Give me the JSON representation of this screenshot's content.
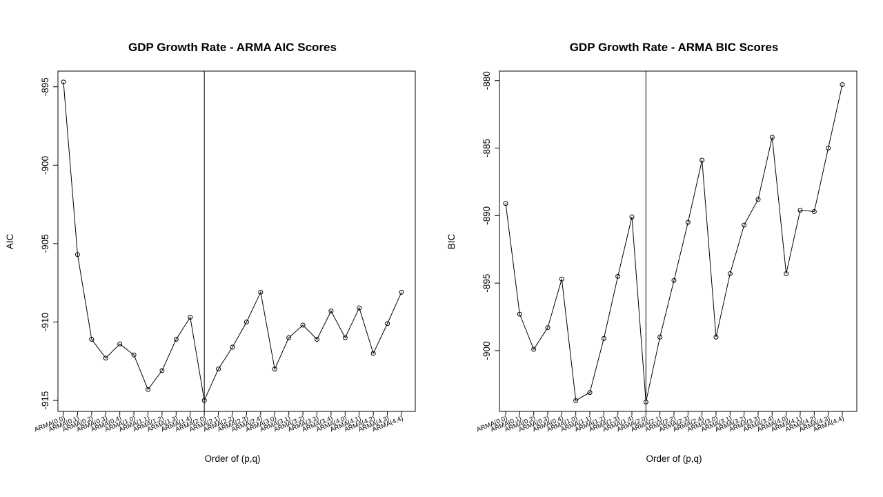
{
  "chart_data": [
    {
      "type": "line",
      "title": "GDP Growth Rate - ARMA AIC Scores",
      "xlabel": "Order of (p,q)",
      "ylabel": "AIC",
      "categories": [
        "ARMA(0,0)",
        "ARMA(0,1)",
        "ARMA(0,2)",
        "ARMA(0,3)",
        "ARMA(0,4)",
        "ARMA(1,0)",
        "ARMA(1,1)",
        "ARMA(1,2)",
        "ARMA(1,3)",
        "ARMA(1,4)",
        "ARMA(2,0)",
        "ARMA(2,1)",
        "ARMA(2,2)",
        "ARMA(2,3)",
        "ARMA(2,4)",
        "ARMA(3,0)",
        "ARMA(3,1)",
        "ARMA(3,2)",
        "ARMA(3,3)",
        "ARMA(3,4)",
        "ARMA(4,0)",
        "ARMA(4,1)",
        "ARMA(4,2)",
        "ARMA(4,3)",
        "ARMA(4,4)"
      ],
      "values": [
        -894.7,
        -905.7,
        -911.1,
        -912.3,
        -911.4,
        -912.1,
        -914.3,
        -913.1,
        -911.1,
        -909.7,
        -915.0,
        -913.0,
        -911.6,
        -910.0,
        -908.1,
        -913.0,
        -911.0,
        -910.2,
        -911.1,
        -909.3,
        -911.0,
        -909.1,
        -912.0,
        -910.1,
        -908.1
      ],
      "yticks": [
        -895,
        -900,
        -905,
        -910,
        -915
      ],
      "ylim": [
        -915.7,
        -894.0
      ],
      "vline_at": "ARMA(2,0)",
      "grid": false,
      "marker": "open-circle"
    },
    {
      "type": "line",
      "title": "GDP Growth Rate - ARMA BIC Scores",
      "xlabel": "Order of (p,q)",
      "ylabel": "BIC",
      "categories": [
        "ARMA(0,0)",
        "ARMA(0,1)",
        "ARMA(0,2)",
        "ARMA(0,3)",
        "ARMA(0,4)",
        "ARMA(1,0)",
        "ARMA(1,1)",
        "ARMA(1,2)",
        "ARMA(1,3)",
        "ARMA(1,4)",
        "ARMA(2,0)",
        "ARMA(2,1)",
        "ARMA(2,2)",
        "ARMA(2,3)",
        "ARMA(2,4)",
        "ARMA(3,0)",
        "ARMA(3,1)",
        "ARMA(3,2)",
        "ARMA(3,3)",
        "ARMA(3,4)",
        "ARMA(4,0)",
        "ARMA(4,1)",
        "ARMA(4,2)",
        "ARMA(4,3)",
        "ARMA(4,4)"
      ],
      "values": [
        -889.1,
        -897.3,
        -899.9,
        -898.3,
        -894.7,
        -903.7,
        -903.1,
        -899.1,
        -894.5,
        -890.1,
        -903.8,
        -899.0,
        -894.8,
        -890.5,
        -885.9,
        -899.0,
        -894.3,
        -890.7,
        -888.8,
        -884.2,
        -894.3,
        -889.6,
        -889.7,
        -885.0,
        -880.3
      ],
      "yticks": [
        -880,
        -885,
        -890,
        -895,
        -900
      ],
      "ylim": [
        -904.5,
        -879.3
      ],
      "vline_at": "ARMA(2,0)",
      "grid": false,
      "marker": "open-circle"
    }
  ]
}
